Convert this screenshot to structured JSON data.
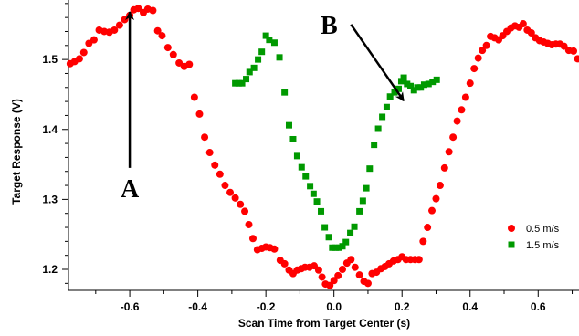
{
  "chart_data": {
    "type": "scatter",
    "title": "",
    "xlabel": "Scan Time from Target Center (s)",
    "ylabel": "Target Response (V)",
    "xlim": [
      -0.78,
      0.72
    ],
    "ylim": [
      1.17,
      1.585
    ],
    "x_ticks": [
      -0.6,
      -0.4,
      -0.2,
      0.0,
      0.2,
      0.4,
      0.6
    ],
    "x_tick_labels": [
      "-0.6",
      "-0.4",
      "-0.2",
      "0.0",
      "0.2",
      "0.4",
      "0.6"
    ],
    "y_ticks": [
      1.2,
      1.3,
      1.4,
      1.5
    ],
    "y_tick_labels": [
      "1.2",
      "1.3",
      "1.4",
      "1.5"
    ],
    "grid": false,
    "legend_position": "lower-right",
    "series": [
      {
        "name": "0.5 m/s",
        "marker": "circle",
        "color": "#ff0000",
        "points": [
          [
            -0.775,
            1.494
          ],
          [
            -0.762,
            1.497
          ],
          [
            -0.748,
            1.501
          ],
          [
            -0.735,
            1.51
          ],
          [
            -0.72,
            1.523
          ],
          [
            -0.705,
            1.528
          ],
          [
            -0.69,
            1.542
          ],
          [
            -0.675,
            1.54
          ],
          [
            -0.66,
            1.539
          ],
          [
            -0.645,
            1.542
          ],
          [
            -0.63,
            1.549
          ],
          [
            -0.615,
            1.557
          ],
          [
            -0.6,
            1.563
          ],
          [
            -0.588,
            1.571
          ],
          [
            -0.575,
            1.573
          ],
          [
            -0.56,
            1.567
          ],
          [
            -0.547,
            1.572
          ],
          [
            -0.532,
            1.57
          ],
          [
            -0.518,
            1.541
          ],
          [
            -0.505,
            1.534
          ],
          [
            -0.488,
            1.517
          ],
          [
            -0.472,
            1.507
          ],
          [
            -0.455,
            1.495
          ],
          [
            -0.44,
            1.49
          ],
          [
            -0.425,
            1.493
          ],
          [
            -0.41,
            1.446
          ],
          [
            -0.395,
            1.422
          ],
          [
            -0.38,
            1.389
          ],
          [
            -0.365,
            1.367
          ],
          [
            -0.35,
            1.349
          ],
          [
            -0.335,
            1.336
          ],
          [
            -0.32,
            1.32
          ],
          [
            -0.305,
            1.31
          ],
          [
            -0.29,
            1.302
          ],
          [
            -0.275,
            1.293
          ],
          [
            -0.262,
            1.283
          ],
          [
            -0.25,
            1.264
          ],
          [
            -0.238,
            1.244
          ],
          [
            -0.225,
            1.228
          ],
          [
            -0.212,
            1.23
          ],
          [
            -0.2,
            1.232
          ],
          [
            -0.188,
            1.231
          ],
          [
            -0.175,
            1.229
          ],
          [
            -0.158,
            1.213
          ],
          [
            -0.145,
            1.208
          ],
          [
            -0.132,
            1.199
          ],
          [
            -0.12,
            1.194
          ],
          [
            -0.108,
            1.199
          ],
          [
            -0.096,
            1.201
          ],
          [
            -0.085,
            1.203
          ],
          [
            -0.072,
            1.203
          ],
          [
            -0.058,
            1.205
          ],
          [
            -0.045,
            1.199
          ],
          [
            -0.035,
            1.189
          ],
          [
            -0.025,
            1.179
          ],
          [
            -0.012,
            1.177
          ],
          [
            0.0,
            1.184
          ],
          [
            0.012,
            1.191
          ],
          [
            0.025,
            1.2
          ],
          [
            0.038,
            1.209
          ],
          [
            0.05,
            1.214
          ],
          [
            0.062,
            1.203
          ],
          [
            0.075,
            1.192
          ],
          [
            0.088,
            1.183
          ],
          [
            0.1,
            1.18
          ],
          [
            0.112,
            1.194
          ],
          [
            0.125,
            1.196
          ],
          [
            0.138,
            1.201
          ],
          [
            0.15,
            1.204
          ],
          [
            0.162,
            1.208
          ],
          [
            0.175,
            1.212
          ],
          [
            0.188,
            1.214
          ],
          [
            0.2,
            1.218
          ],
          [
            0.212,
            1.214
          ],
          [
            0.225,
            1.214
          ],
          [
            0.238,
            1.214
          ],
          [
            0.25,
            1.214
          ],
          [
            0.262,
            1.24
          ],
          [
            0.275,
            1.26
          ],
          [
            0.288,
            1.284
          ],
          [
            0.3,
            1.301
          ],
          [
            0.312,
            1.32
          ],
          [
            0.325,
            1.345
          ],
          [
            0.338,
            1.368
          ],
          [
            0.35,
            1.389
          ],
          [
            0.362,
            1.412
          ],
          [
            0.375,
            1.428
          ],
          [
            0.387,
            1.446
          ],
          [
            0.4,
            1.466
          ],
          [
            0.412,
            1.487
          ],
          [
            0.424,
            1.502
          ],
          [
            0.436,
            1.513
          ],
          [
            0.448,
            1.52
          ],
          [
            0.46,
            1.533
          ],
          [
            0.472,
            1.531
          ],
          [
            0.484,
            1.528
          ],
          [
            0.496,
            1.534
          ],
          [
            0.508,
            1.54
          ],
          [
            0.52,
            1.545
          ],
          [
            0.532,
            1.548
          ],
          [
            0.544,
            1.546
          ],
          [
            0.556,
            1.551
          ],
          [
            0.568,
            1.542
          ],
          [
            0.58,
            1.538
          ],
          [
            0.592,
            1.531
          ],
          [
            0.604,
            1.527
          ],
          [
            0.616,
            1.525
          ],
          [
            0.628,
            1.523
          ],
          [
            0.64,
            1.521
          ],
          [
            0.652,
            1.522
          ],
          [
            0.664,
            1.522
          ],
          [
            0.676,
            1.519
          ],
          [
            0.69,
            1.513
          ],
          [
            0.704,
            1.512
          ],
          [
            0.716,
            1.501
          ]
        ]
      },
      {
        "name": "1.5 m/s",
        "marker": "square",
        "color": "#009900",
        "points": [
          [
            -0.29,
            1.466
          ],
          [
            -0.28,
            1.466
          ],
          [
            -0.27,
            1.466
          ],
          [
            -0.258,
            1.472
          ],
          [
            -0.248,
            1.482
          ],
          [
            -0.235,
            1.488
          ],
          [
            -0.223,
            1.5
          ],
          [
            -0.212,
            1.511
          ],
          [
            -0.2,
            1.534
          ],
          [
            -0.19,
            1.528
          ],
          [
            -0.175,
            1.524
          ],
          [
            -0.16,
            1.503
          ],
          [
            -0.145,
            1.453
          ],
          [
            -0.132,
            1.406
          ],
          [
            -0.12,
            1.386
          ],
          [
            -0.108,
            1.362
          ],
          [
            -0.095,
            1.346
          ],
          [
            -0.083,
            1.333
          ],
          [
            -0.07,
            1.319
          ],
          [
            -0.06,
            1.308
          ],
          [
            -0.05,
            1.297
          ],
          [
            -0.038,
            1.283
          ],
          [
            -0.027,
            1.26
          ],
          [
            -0.015,
            1.246
          ],
          [
            -0.005,
            1.231
          ],
          [
            0.005,
            1.231
          ],
          [
            0.015,
            1.231
          ],
          [
            0.025,
            1.233
          ],
          [
            0.035,
            1.239
          ],
          [
            0.048,
            1.252
          ],
          [
            0.06,
            1.261
          ],
          [
            0.075,
            1.283
          ],
          [
            0.085,
            1.298
          ],
          [
            0.095,
            1.316
          ],
          [
            0.105,
            1.344
          ],
          [
            0.118,
            1.378
          ],
          [
            0.13,
            1.401
          ],
          [
            0.142,
            1.418
          ],
          [
            0.155,
            1.432
          ],
          [
            0.165,
            1.447
          ],
          [
            0.178,
            1.453
          ],
          [
            0.19,
            1.458
          ],
          [
            0.198,
            1.469
          ],
          [
            0.205,
            1.474
          ],
          [
            0.215,
            1.465
          ],
          [
            0.225,
            1.462
          ],
          [
            0.235,
            1.456
          ],
          [
            0.245,
            1.46
          ],
          [
            0.255,
            1.46
          ],
          [
            0.265,
            1.464
          ],
          [
            0.278,
            1.465
          ],
          [
            0.29,
            1.468
          ],
          [
            0.302,
            1.471
          ]
        ]
      }
    ],
    "annotations": [
      {
        "label": "A",
        "arrow_from": [
          -0.6,
          1.345
        ],
        "arrow_to": [
          -0.6,
          1.568
        ]
      },
      {
        "label": "B",
        "arrow_from": [
          0.05,
          1.55
        ],
        "arrow_to": [
          0.205,
          1.441
        ]
      }
    ]
  }
}
